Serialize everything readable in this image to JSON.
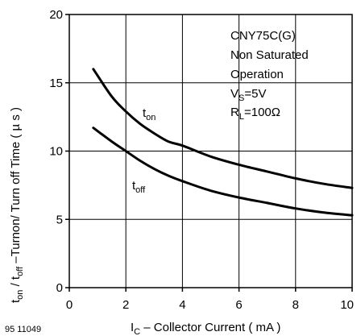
{
  "chart_data": {
    "type": "line",
    "figure_id": "95 11049",
    "xlabel": {
      "main": "I",
      "sub": "C",
      "rest": " – Collector Current ( mA )"
    },
    "ylabel": {
      "a": "t",
      "a_sub": "on",
      "b": " / t",
      "b_sub": "off",
      "rest": " –Turnon/ Turn off Time ( µ s )"
    },
    "xlim": [
      0,
      10
    ],
    "ylim": [
      0,
      20
    ],
    "xticks": [
      "0",
      "2",
      "4",
      "6",
      "8",
      "10"
    ],
    "yticks": [
      "0",
      "5",
      "10",
      "15",
      "20"
    ],
    "grid": true,
    "annotations": {
      "part": "CNY75C(G)",
      "mode1": "Non Saturated",
      "mode2": "Operation",
      "vs_main": "V",
      "vs_sub": "S",
      "vs_val": "=5V",
      "rl_main": "R",
      "rl_sub": "L",
      "rl_val": "=100Ω"
    },
    "series": [
      {
        "name_main": "t",
        "name_sub": "on",
        "x": [
          0.85,
          1.5,
          2.0,
          2.5,
          3.0,
          3.5,
          4.0,
          5.0,
          6.0,
          7.0,
          8.0,
          9.0,
          10.0
        ],
        "y": [
          16.0,
          14.0,
          12.9,
          12.0,
          11.3,
          10.7,
          10.4,
          9.6,
          9.0,
          8.5,
          8.0,
          7.6,
          7.3
        ]
      },
      {
        "name_main": "t",
        "name_sub": "off",
        "x": [
          0.85,
          1.5,
          2.0,
          2.5,
          3.0,
          3.5,
          4.0,
          5.0,
          6.0,
          7.0,
          8.0,
          9.0,
          10.0
        ],
        "y": [
          11.7,
          10.7,
          10.0,
          9.3,
          8.7,
          8.2,
          7.8,
          7.1,
          6.6,
          6.2,
          5.8,
          5.5,
          5.3
        ]
      }
    ]
  }
}
